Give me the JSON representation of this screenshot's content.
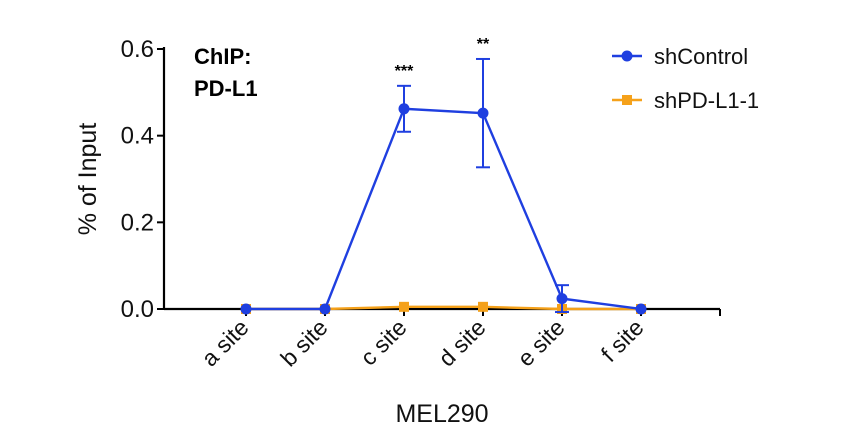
{
  "chart_data": {
    "type": "line",
    "title": "ChIP: PD-L1",
    "title_lines": [
      "ChIP:",
      "PD-L1"
    ],
    "xlabel": "MEL290",
    "ylabel": "% of Input",
    "categories": [
      "a site",
      "b site",
      "c site",
      "d site",
      "e site",
      "f site"
    ],
    "ylim": [
      0,
      0.6
    ],
    "yticks": [
      "0.0",
      "0.2",
      "0.4",
      "0.6"
    ],
    "ytick_values": [
      0,
      0.2,
      0.4,
      0.6
    ],
    "legend_position": "top-right",
    "series": [
      {
        "name": "shControl",
        "color": "#1f3fe0",
        "marker": "circle",
        "values": [
          0.0,
          0.0,
          0.462,
          0.452,
          0.024,
          0.0
        ],
        "error": [
          0.0,
          0.0,
          0.053,
          0.125,
          0.031,
          0.0
        ]
      },
      {
        "name": "shPD-L1-1",
        "color": "#f5a11a",
        "marker": "square",
        "values": [
          0.0,
          0.0,
          0.005,
          0.005,
          0.0,
          0.0
        ],
        "error": [
          0.0,
          0.0,
          0.0,
          0.0,
          0.0,
          0.0
        ]
      }
    ],
    "annotations": [
      {
        "category": "c site",
        "text": "***"
      },
      {
        "category": "d site",
        "text": "**"
      }
    ]
  }
}
